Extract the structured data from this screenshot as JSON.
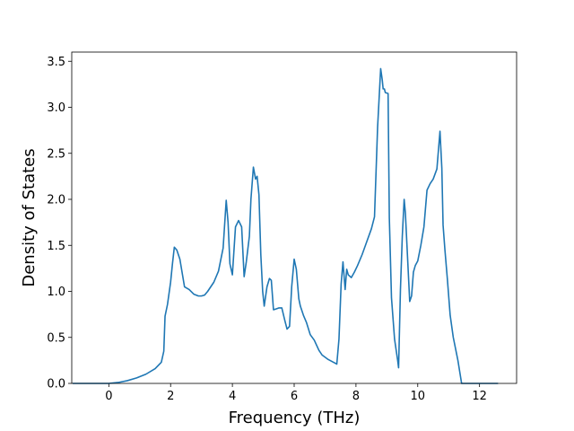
{
  "chart_data": {
    "type": "line",
    "title": "",
    "xlabel": "Frequency (THz)",
    "ylabel": "Density of States",
    "xlim": [
      -1.2,
      13.2
    ],
    "ylim": [
      0.0,
      3.6
    ],
    "xticks": [
      0,
      2,
      4,
      6,
      8,
      10,
      12
    ],
    "yticks": [
      0.0,
      0.5,
      1.0,
      1.5,
      2.0,
      2.5,
      3.0,
      3.5
    ],
    "grid": false,
    "legend": "none",
    "line_color": "#1f77b4",
    "series": [
      {
        "x": [
          -1.17,
          -0.6,
          0.0,
          0.3,
          0.6,
          0.9,
          1.2,
          1.5,
          1.7,
          1.78,
          1.82,
          1.9,
          2.0,
          2.06,
          2.12,
          2.2,
          2.3,
          2.45,
          2.6,
          2.75,
          2.9,
          3.0,
          3.1,
          3.2,
          3.4,
          3.55,
          3.7,
          3.8,
          3.86,
          3.92,
          4.0,
          4.1,
          4.2,
          4.3,
          4.38,
          4.45,
          4.55,
          4.6,
          4.68,
          4.75,
          4.8,
          4.86,
          4.92,
          4.98,
          5.03,
          5.12,
          5.2,
          5.26,
          5.33,
          5.42,
          5.5,
          5.6,
          5.7,
          5.77,
          5.85,
          5.92,
          6.0,
          6.07,
          6.15,
          6.2,
          6.3,
          6.4,
          6.52,
          6.65,
          6.8,
          6.9,
          7.1,
          7.38,
          7.45,
          7.52,
          7.58,
          7.65,
          7.7,
          7.75,
          7.85,
          7.95,
          8.05,
          8.2,
          8.35,
          8.5,
          8.6,
          8.7,
          8.8,
          8.85,
          8.88,
          8.92,
          8.95,
          9.04,
          9.08,
          9.15,
          9.25,
          9.35,
          9.38,
          9.44,
          9.5,
          9.56,
          9.6,
          9.68,
          9.74,
          9.8,
          9.86,
          9.92,
          10.0,
          10.1,
          10.2,
          10.3,
          10.4,
          10.5,
          10.62,
          10.72,
          10.78,
          10.82,
          10.88,
          10.96,
          11.05,
          11.15,
          11.3,
          11.42,
          11.5,
          11.65,
          12.0,
          12.6
        ],
        "values": [
          0.0,
          0.0,
          0.0,
          0.01,
          0.03,
          0.06,
          0.1,
          0.16,
          0.23,
          0.35,
          0.73,
          0.86,
          1.1,
          1.3,
          1.48,
          1.45,
          1.35,
          1.05,
          1.02,
          0.97,
          0.95,
          0.95,
          0.96,
          1.0,
          1.1,
          1.22,
          1.47,
          1.99,
          1.75,
          1.3,
          1.18,
          1.7,
          1.77,
          1.7,
          1.16,
          1.32,
          1.6,
          2.0,
          2.35,
          2.22,
          2.25,
          2.05,
          1.4,
          1.0,
          0.84,
          1.05,
          1.14,
          1.12,
          0.8,
          0.81,
          0.82,
          0.82,
          0.68,
          0.59,
          0.62,
          1.05,
          1.35,
          1.24,
          0.92,
          0.84,
          0.74,
          0.66,
          0.53,
          0.47,
          0.36,
          0.31,
          0.26,
          0.21,
          0.48,
          1.08,
          1.32,
          1.02,
          1.24,
          1.18,
          1.15,
          1.21,
          1.28,
          1.4,
          1.54,
          1.68,
          1.81,
          2.78,
          3.42,
          3.3,
          3.2,
          3.2,
          3.16,
          3.15,
          1.8,
          0.93,
          0.48,
          0.25,
          0.17,
          1.02,
          1.6,
          2.0,
          1.85,
          1.3,
          0.89,
          0.95,
          1.21,
          1.28,
          1.33,
          1.5,
          1.7,
          2.1,
          2.17,
          2.22,
          2.33,
          2.74,
          2.34,
          1.72,
          1.45,
          1.13,
          0.74,
          0.5,
          0.25,
          0.0,
          0.0,
          0.0,
          0.0,
          0.0
        ]
      }
    ]
  }
}
